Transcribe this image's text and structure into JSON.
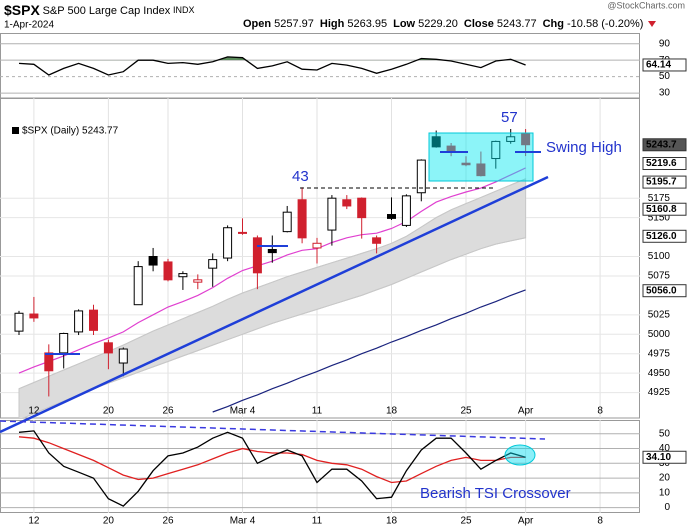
{
  "header": {
    "symbol": "$SPX",
    "name": "S&P 500 Large Cap Index",
    "exchange": "INDX",
    "date": "1-Apr-2024",
    "quote": [
      [
        "Open",
        "5257.97"
      ],
      [
        "High",
        "5263.95"
      ],
      [
        "Low",
        "5229.20"
      ],
      [
        "Close",
        "5243.77"
      ],
      [
        "Chg",
        "-10.58 (-0.20%)"
      ]
    ],
    "watermark": "@StockCharts.com"
  },
  "chart_data": [
    {
      "type": "line",
      "fill_above": 70,
      "fill_color": "#5a8a5a",
      "series": [
        {
          "color": "#000000",
          "values": [
            66,
            65,
            52,
            60,
            66,
            60,
            52,
            56,
            70,
            70,
            66,
            67,
            65,
            68,
            74,
            73,
            60,
            63,
            68,
            59,
            58,
            66,
            64,
            60,
            54,
            59,
            65,
            72,
            71,
            69,
            65,
            61,
            69,
            71,
            64.14,
            null,
            null,
            null,
            null,
            null
          ]
        }
      ],
      "ylim": [
        24,
        103
      ],
      "yticks": [
        90,
        70,
        50,
        30
      ],
      "value_markers": [
        64.14
      ]
    },
    {
      "type": "candlestick",
      "legend": "$SPX (Daily) 5243.77",
      "categories": [
        null,
        "12",
        null,
        null,
        null,
        null,
        "20",
        null,
        null,
        null,
        "26",
        null,
        null,
        null,
        null,
        "Mar 4",
        null,
        null,
        null,
        null,
        "11",
        null,
        null,
        null,
        null,
        "18",
        null,
        null,
        null,
        null,
        "25",
        null,
        null,
        null,
        "Apr",
        null,
        null,
        null,
        null,
        "8"
      ],
      "open": [
        5004,
        5026,
        4976,
        4976,
        5003,
        5031,
        4989,
        4963,
        5038,
        5100,
        5093,
        5074,
        5067,
        5085,
        5098,
        5131,
        5124,
        5109,
        5132,
        5173,
        5111,
        5134,
        5173,
        5175,
        5124,
        5154,
        5140,
        5182,
        5254,
        5242,
        5220,
        5219,
        5226,
        5248,
        5257.97,
        null,
        null,
        null,
        null,
        null
      ],
      "high": [
        5030,
        5048,
        4987,
        5002,
        5032,
        5038,
        4993,
        4983,
        5094,
        5111,
        5097,
        5081,
        5077,
        5104,
        5140,
        5149,
        5127,
        5127,
        5165,
        5189,
        5124,
        5179,
        5179,
        5176,
        5127,
        5176,
        5180,
        5225,
        5262,
        5246,
        5229,
        5235,
        5249,
        5264,
        5263.95,
        null,
        null,
        null,
        null,
        null
      ],
      "low": [
        4999,
        5016,
        4920,
        4956,
        4999,
        4999,
        4955,
        4946,
        5038,
        5081,
        5068,
        5057,
        5058,
        5061,
        5094,
        5128,
        5058,
        5092,
        5131,
        5117,
        5091,
        5114,
        5161,
        5123,
        5104,
        5147,
        5138,
        5171,
        5240,
        5229,
        5216,
        5203,
        5213,
        5245,
        5229.2,
        null,
        null,
        null,
        null,
        null
      ],
      "close": [
        5027,
        5021,
        4953,
        5001,
        5030,
        5005,
        4976,
        4981,
        5087,
        5089,
        5070,
        5078,
        5070,
        5096,
        5137,
        5131,
        5079,
        5105,
        5157,
        5124,
        5117,
        5175,
        5165,
        5150,
        5117,
        5149,
        5178,
        5224,
        5241,
        5234,
        5218,
        5204,
        5248,
        5254,
        5243.77,
        null,
        null,
        null,
        null,
        null
      ],
      "up_color": "#000000",
      "down_color": "#d0202e",
      "band": {
        "color": "#dcdcdc",
        "upper": [
          4930,
          4938,
          4946,
          4954,
          4962,
          4970,
          4978,
          4986,
          4995,
          5004,
          5012,
          5020,
          5028,
          5036,
          5045,
          5053,
          5060,
          5067,
          5074,
          5080,
          5086,
          5092,
          5098,
          5104,
          5110,
          5117,
          5126,
          5138,
          5150,
          5160,
          5168,
          5176,
          5184,
          5192,
          5200,
          null,
          null,
          null,
          null,
          null
        ],
        "lower": [
          4890,
          4898,
          4906,
          4914,
          4922,
          4930,
          4937,
          4944,
          4951,
          4958,
          4965,
          4972,
          4979,
          4986,
          4993,
          5000,
          5007,
          5014,
          5020,
          5026,
          5032,
          5038,
          5044,
          5050,
          5057,
          5064,
          5072,
          5080,
          5088,
          5096,
          5103,
          5110,
          5116,
          5120,
          5124,
          null,
          null,
          null,
          null,
          null
        ]
      },
      "overlays": [
        {
          "color": "#e040d0",
          "values": [
            4950,
            4958,
            4965,
            4972,
            4980,
            4988,
            4995,
            5003,
            5015,
            5025,
            5035,
            5042,
            5050,
            5060,
            5072,
            5082,
            5088,
            5094,
            5102,
            5108,
            5110,
            5118,
            5124,
            5128,
            5130,
            5136,
            5145,
            5158,
            5170,
            5177,
            5183,
            5188,
            5196,
            5205,
            5214,
            null,
            null,
            null,
            null,
            null
          ]
        },
        {
          "color": "#1a237e",
          "values": [
            null,
            null,
            null,
            null,
            null,
            null,
            null,
            null,
            null,
            null,
            null,
            null,
            null,
            4900,
            4907,
            4915,
            4922,
            4930,
            4937,
            4945,
            4952,
            4960,
            4967,
            4975,
            4982,
            4990,
            4997,
            5005,
            5012,
            5020,
            5027,
            5035,
            5042,
            5050,
            5057,
            null,
            null,
            null,
            null,
            null
          ]
        }
      ],
      "ylim": [
        4900,
        5300
      ],
      "yticks": [
        4925,
        4950,
        4975,
        5000,
        5025,
        5075,
        5100,
        5150,
        5175
      ],
      "value_markers": [
        5243.7,
        5219.6,
        5195.7,
        5160.8,
        {
          "value": 5126,
          "label": "5126.0"
        },
        {
          "value": 5056,
          "label": "5056.0"
        }
      ],
      "annotations": [
        "43",
        "57",
        "Swing High"
      ]
    },
    {
      "type": "line",
      "categories": [
        null,
        "12",
        null,
        null,
        null,
        null,
        "20",
        null,
        null,
        null,
        "26",
        null,
        null,
        null,
        null,
        "Mar 4",
        null,
        null,
        null,
        null,
        "11",
        null,
        null,
        null,
        null,
        "18",
        null,
        null,
        null,
        null,
        "25",
        null,
        null,
        null,
        "Apr",
        null,
        null,
        null,
        null,
        "8"
      ],
      "series": [
        {
          "color": "#000000",
          "values": [
            51,
            52,
            37,
            28,
            24,
            20,
            6,
            1,
            11,
            25,
            35,
            37,
            41,
            47,
            51,
            47,
            30,
            35,
            39,
            35,
            17,
            26,
            26,
            18,
            6,
            7,
            25,
            39,
            47,
            47,
            37,
            26,
            32,
            37,
            34.1,
            null,
            null,
            null,
            null,
            null
          ]
        },
        {
          "color": "#e02020",
          "values": [
            48,
            47,
            44,
            40,
            36,
            32,
            27,
            22,
            19,
            20,
            23,
            26,
            29,
            33,
            37,
            40,
            38,
            37,
            37,
            36,
            32,
            30,
            29,
            26,
            21,
            17,
            18,
            23,
            28,
            32,
            34,
            32,
            32,
            34,
            34,
            null,
            null,
            null,
            null,
            null
          ]
        }
      ],
      "ylim": [
        -3,
        58
      ],
      "yticks": [
        0,
        10,
        20,
        30,
        40,
        50
      ],
      "value_markers": [
        {
          "value": 34.1,
          "label": "34.10"
        }
      ],
      "annotations": [
        "Bearish TSI Crossover"
      ]
    }
  ]
}
